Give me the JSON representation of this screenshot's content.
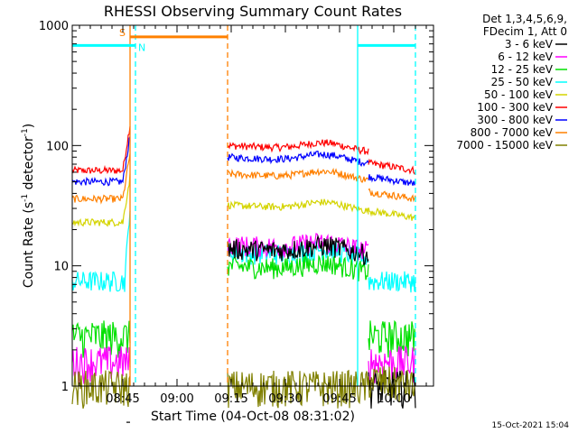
{
  "chart_data": {
    "type": "line",
    "title": "RHESSI Observing Summary Count Rates",
    "xlabel": "Start Time (04-Oct-08 08:31:02)",
    "ylabel_main": "Count Rate (s",
    "ylabel_sup1": "-1",
    "ylabel_mid": " detector",
    "ylabel_sup2": "-1",
    "ylabel_end": ")",
    "yscale": "log",
    "ylim": [
      1,
      1000
    ],
    "xlim_minutes": [
      0,
      100
    ],
    "x_ticks": [
      {
        "m": 14,
        "label": "08:45"
      },
      {
        "m": 29,
        "label": "09:00"
      },
      {
        "m": 44,
        "label": "09:15"
      },
      {
        "m": 59,
        "label": "09:30"
      },
      {
        "m": 74,
        "label": "09:45"
      },
      {
        "m": 89,
        "label": "10:00"
      }
    ],
    "y_ticks": [
      {
        "v": 1,
        "label": "1"
      },
      {
        "v": 10,
        "label": "10"
      },
      {
        "v": 100,
        "label": "100"
      },
      {
        "v": 1000,
        "label": "1000"
      }
    ],
    "legend_header": [
      "Det 1,3,4,5,6,9,",
      "FDecim 1, Att 0"
    ],
    "series": [
      {
        "name": "3 - 6 keV",
        "color": "#000000",
        "before": 0,
        "after": 14,
        "decay": 0
      },
      {
        "name": "6 - 12 keV",
        "color": "#ff00ff",
        "before": 1.6,
        "after": 15,
        "decay": 0
      },
      {
        "name": "12 - 25 keV",
        "color": "#00e000",
        "before": 2.6,
        "after": 10,
        "decay": 0
      },
      {
        "name": "25 - 50 keV",
        "color": "#00ffff",
        "before": 7.5,
        "after": 13,
        "decay": 0
      },
      {
        "name": "50 - 100 keV",
        "color": "#d4d400",
        "before": 23,
        "after": 32,
        "decay": 25
      },
      {
        "name": "100 - 300 keV",
        "color": "#ff0000",
        "before": 62,
        "after": 100,
        "decay": 62
      },
      {
        "name": "300 - 800 keV",
        "color": "#0000ff",
        "before": 50,
        "after": 80,
        "decay": 48
      },
      {
        "name": "800 - 7000 keV",
        "color": "#ff8000",
        "before": 36,
        "after": 58,
        "decay": 36
      },
      {
        "name": "7000 - 15000 keV",
        "color": "#808000",
        "before": 1,
        "after": 1,
        "decay": 1
      }
    ],
    "segments": [
      [
        0,
        16
      ],
      [
        43,
        82
      ],
      [
        82,
        95
      ]
    ],
    "vlines": [
      {
        "m": 16,
        "color": "#ff8000",
        "style": "solid"
      },
      {
        "m": 17.5,
        "color": "#00ffff",
        "style": "dashed"
      },
      {
        "m": 43,
        "color": "#ff8000",
        "style": "dashed"
      },
      {
        "m": 79,
        "color": "#00ffff",
        "style": "solid"
      },
      {
        "m": 95,
        "color": "#00ffff",
        "style": "dashed"
      }
    ],
    "flags": [
      {
        "label": "S",
        "color": "#ff8000",
        "m0": 16,
        "m1": 43,
        "level": 800
      },
      {
        "label": "N",
        "color": "#00ffff",
        "m0": 0,
        "m1": 17.5,
        "level": 680
      },
      {
        "label": "",
        "color": "#00ffff",
        "m0": 79,
        "m1": 95,
        "level": 680
      }
    ]
  },
  "footer": {
    "timestamp": "15-Oct-2021 15:04"
  }
}
